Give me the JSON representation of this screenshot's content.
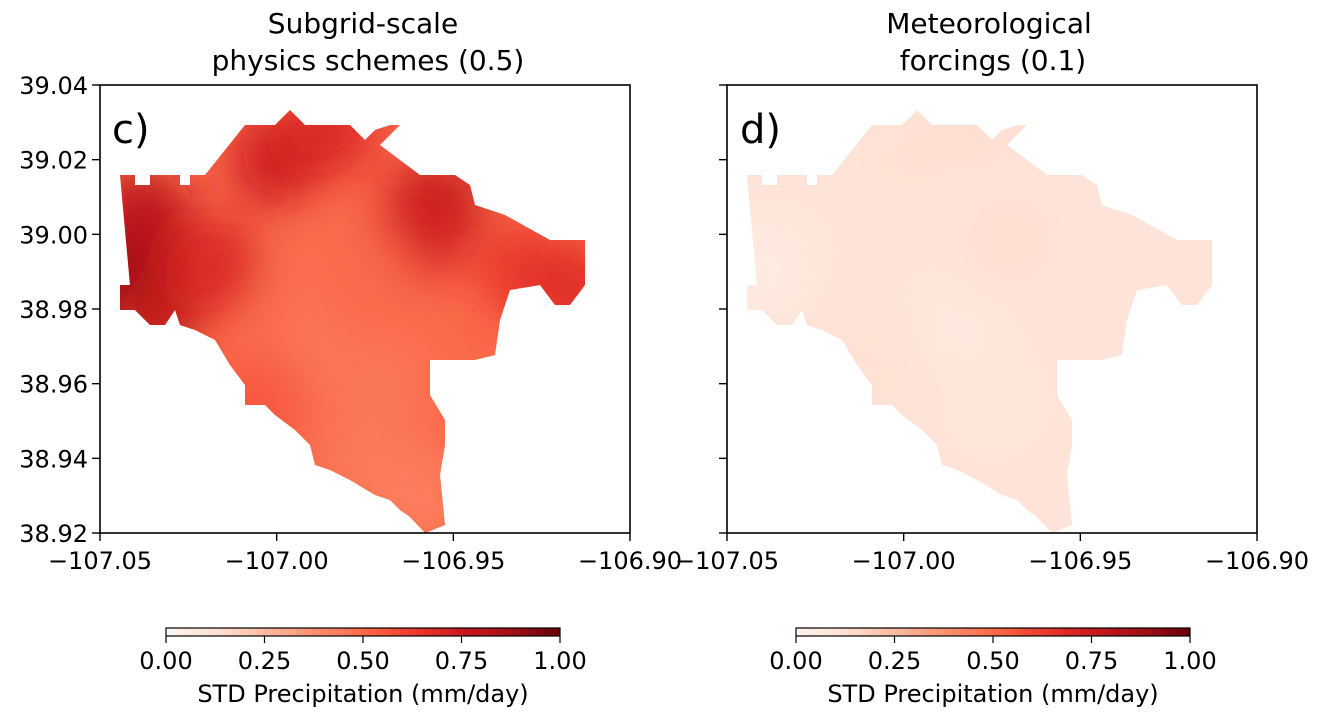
{
  "colormap": {
    "name": "Reds",
    "stops": [
      "#fff5f0",
      "#fee0d2",
      "#fcbba1",
      "#fc9272",
      "#fb6a4a",
      "#ef3b2c",
      "#cb181d",
      "#a50f15",
      "#67000d"
    ]
  },
  "chart_data": [
    {
      "type": "heatmap",
      "title_lines": [
        "Subgrid-scale",
        "physics schemes (0.5)"
      ],
      "panel_label": "c)",
      "xlim": [
        -107.05,
        -106.9
      ],
      "ylim": [
        38.92,
        39.04
      ],
      "xticks": [
        "−107.05",
        "−107.00",
        "−106.95",
        "−106.90"
      ],
      "yticks": [
        "38.92",
        "38.94",
        "38.96",
        "38.98",
        "39.00",
        "39.02",
        "39.04"
      ],
      "y_ticklabels_visible": true,
      "mean_value": 0.5,
      "field_points": [
        {
          "lon": -107.045,
          "lat": 38.99,
          "value": 0.95
        },
        {
          "lon": -107.038,
          "lat": 39.005,
          "value": 0.82
        },
        {
          "lon": -107.035,
          "lat": 38.978,
          "value": 0.8
        },
        {
          "lon": -107.018,
          "lat": 38.992,
          "value": 0.7
        },
        {
          "lon": -107.0,
          "lat": 39.02,
          "value": 0.75
        },
        {
          "lon": -106.985,
          "lat": 39.028,
          "value": 0.7
        },
        {
          "lon": -106.955,
          "lat": 39.008,
          "value": 0.8
        },
        {
          "lon": -106.96,
          "lat": 39.0,
          "value": 0.72
        },
        {
          "lon": -106.93,
          "lat": 38.99,
          "value": 0.65
        },
        {
          "lon": -106.915,
          "lat": 38.985,
          "value": 0.68
        },
        {
          "lon": -106.99,
          "lat": 38.985,
          "value": 0.48
        },
        {
          "lon": -106.975,
          "lat": 38.99,
          "value": 0.5
        },
        {
          "lon": -106.99,
          "lat": 38.965,
          "value": 0.46
        },
        {
          "lon": -107.005,
          "lat": 38.955,
          "value": 0.55
        },
        {
          "lon": -106.97,
          "lat": 38.96,
          "value": 0.46
        },
        {
          "lon": -106.975,
          "lat": 38.94,
          "value": 0.45
        },
        {
          "lon": -106.96,
          "lat": 38.93,
          "value": 0.43
        }
      ],
      "colorbar": {
        "label": "STD Precipitation (mm/day)",
        "ticks": [
          "0.00",
          "0.25",
          "0.50",
          "0.75",
          "1.00"
        ],
        "range": [
          0,
          1
        ]
      }
    },
    {
      "type": "heatmap",
      "title_lines": [
        "Meteorological",
        "forcings (0.1)"
      ],
      "panel_label": "d)",
      "xlim": [
        -107.05,
        -106.9
      ],
      "ylim": [
        38.92,
        39.04
      ],
      "xticks": [
        "−107.05",
        "−107.00",
        "−106.95",
        "−106.90"
      ],
      "yticks": [
        "38.92",
        "38.94",
        "38.96",
        "38.98",
        "39.00",
        "39.02",
        "39.04"
      ],
      "y_ticklabels_visible": false,
      "mean_value": 0.1,
      "field_points": [
        {
          "lon": -107.04,
          "lat": 38.99,
          "value": 0.06
        },
        {
          "lon": -107.0,
          "lat": 39.02,
          "value": 0.12
        },
        {
          "lon": -106.98,
          "lat": 39.03,
          "value": 0.13
        },
        {
          "lon": -106.97,
          "lat": 38.998,
          "value": 0.13
        },
        {
          "lon": -106.93,
          "lat": 38.99,
          "value": 0.1
        },
        {
          "lon": -107.02,
          "lat": 38.975,
          "value": 0.11
        },
        {
          "lon": -107.005,
          "lat": 38.965,
          "value": 0.12
        },
        {
          "lon": -106.985,
          "lat": 38.975,
          "value": 0.08
        },
        {
          "lon": -106.975,
          "lat": 38.955,
          "value": 0.09
        },
        {
          "lon": -106.96,
          "lat": 38.93,
          "value": 0.1
        }
      ],
      "colorbar": {
        "label": "STD Precipitation (mm/day)",
        "ticks": [
          "0.00",
          "0.25",
          "0.50",
          "0.75",
          "1.00"
        ],
        "range": [
          0,
          1
        ]
      }
    }
  ]
}
